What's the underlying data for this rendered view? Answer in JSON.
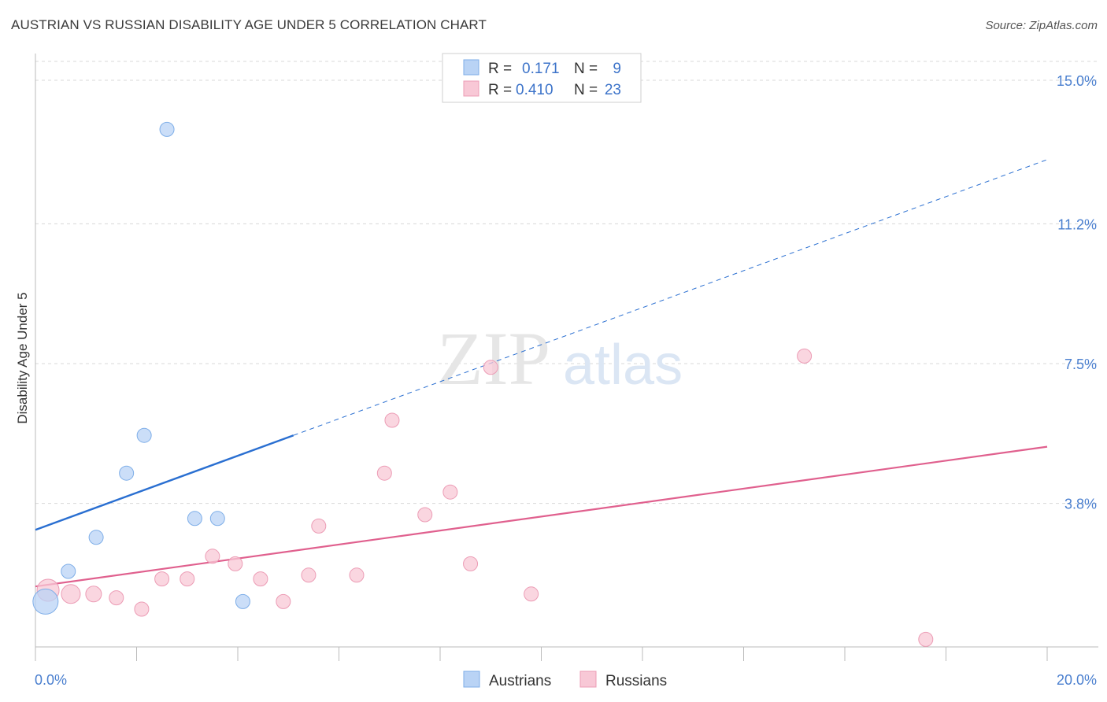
{
  "title": "AUSTRIAN VS RUSSIAN DISABILITY AGE UNDER 5 CORRELATION CHART",
  "source": "Source: ZipAtlas.com",
  "watermark": {
    "zip": "ZIP",
    "atlas": "atlas"
  },
  "colors": {
    "austrians_fill": "#b9d3f5",
    "austrians_stroke": "#7eaee8",
    "austrians_line": "#2a6fd1",
    "russians_fill": "#f8c8d6",
    "russians_stroke": "#ec9cb5",
    "russians_line": "#e0608e",
    "tick_label": "#4a7fcf",
    "grid": "#d8d8d8"
  },
  "legend": {
    "rows": [
      {
        "r_label": "R =",
        "r_value": "0.171",
        "n_label": "N =",
        "n_value": "9",
        "series": "austrians"
      },
      {
        "r_label": "R =",
        "r_value": "0.410",
        "n_label": "N =",
        "n_value": "23",
        "series": "russians"
      }
    ]
  },
  "chart_data": {
    "type": "scatter",
    "title": "AUSTRIAN VS RUSSIAN DISABILITY AGE UNDER 5 CORRELATION CHART",
    "xlabel": "",
    "ylabel": "Disability Age Under 5",
    "xlim": [
      0,
      20
    ],
    "ylim": [
      0,
      15.5
    ],
    "x_tick_labels": [
      "0.0%",
      "20.0%"
    ],
    "y_ticks": [
      3.8,
      7.5,
      11.2,
      15.0
    ],
    "y_tick_labels": [
      "3.8%",
      "7.5%",
      "11.2%",
      "15.0%"
    ],
    "grid": true,
    "legend_position": "bottom",
    "series": [
      {
        "name": "Austrians",
        "points": [
          {
            "x": 0.2,
            "y": 1.2,
            "s": 16
          },
          {
            "x": 0.65,
            "y": 2.0,
            "s": 9
          },
          {
            "x": 1.2,
            "y": 2.9,
            "s": 9
          },
          {
            "x": 1.8,
            "y": 4.6,
            "s": 9
          },
          {
            "x": 2.15,
            "y": 5.6,
            "s": 9
          },
          {
            "x": 2.6,
            "y": 13.7,
            "s": 9
          },
          {
            "x": 3.15,
            "y": 3.4,
            "s": 9
          },
          {
            "x": 3.6,
            "y": 3.4,
            "s": 9
          },
          {
            "x": 4.1,
            "y": 1.2,
            "s": 9
          }
        ],
        "trend": {
          "x0": 0,
          "y0": 3.1,
          "x1": 5.1,
          "y1": 5.6
        },
        "trend_extension": {
          "x0": 5.1,
          "y0": 5.6,
          "x1": 20,
          "y1": 12.9
        }
      },
      {
        "name": "Russians",
        "points": [
          {
            "x": 0.25,
            "y": 1.5,
            "s": 14
          },
          {
            "x": 0.7,
            "y": 1.4,
            "s": 12
          },
          {
            "x": 1.15,
            "y": 1.4,
            "s": 10
          },
          {
            "x": 1.6,
            "y": 1.3,
            "s": 9
          },
          {
            "x": 2.1,
            "y": 1.0,
            "s": 9
          },
          {
            "x": 2.5,
            "y": 1.8,
            "s": 9
          },
          {
            "x": 3.0,
            "y": 1.8,
            "s": 9
          },
          {
            "x": 3.5,
            "y": 2.4,
            "s": 9
          },
          {
            "x": 3.95,
            "y": 2.2,
            "s": 9
          },
          {
            "x": 4.45,
            "y": 1.8,
            "s": 9
          },
          {
            "x": 4.9,
            "y": 1.2,
            "s": 9
          },
          {
            "x": 5.4,
            "y": 1.9,
            "s": 9
          },
          {
            "x": 5.6,
            "y": 3.2,
            "s": 9
          },
          {
            "x": 6.35,
            "y": 1.9,
            "s": 9
          },
          {
            "x": 6.9,
            "y": 4.6,
            "s": 9
          },
          {
            "x": 7.05,
            "y": 6.0,
            "s": 9
          },
          {
            "x": 7.7,
            "y": 3.5,
            "s": 9
          },
          {
            "x": 8.2,
            "y": 4.1,
            "s": 9
          },
          {
            "x": 8.6,
            "y": 2.2,
            "s": 9
          },
          {
            "x": 9.0,
            "y": 7.4,
            "s": 9
          },
          {
            "x": 9.8,
            "y": 1.4,
            "s": 9
          },
          {
            "x": 15.2,
            "y": 7.7,
            "s": 9
          },
          {
            "x": 17.6,
            "y": 0.2,
            "s": 9
          }
        ],
        "trend": {
          "x0": 0,
          "y0": 1.6,
          "x1": 20,
          "y1": 5.3
        }
      }
    ]
  }
}
